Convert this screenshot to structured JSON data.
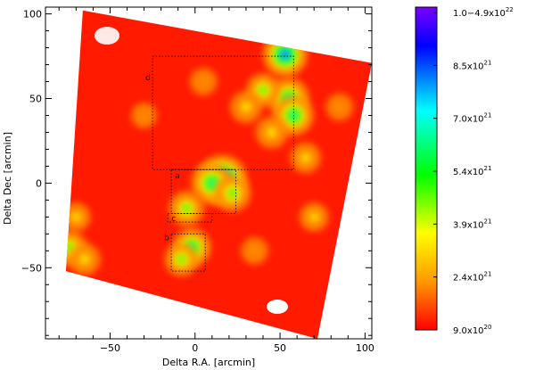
{
  "chart_data": {
    "type": "heatmap",
    "xlabel": "Delta R.A. [arcmin]",
    "ylabel": "Delta Dec [arcmin]",
    "xlim": [
      -88,
      104
    ],
    "ylim": [
      -92,
      104
    ],
    "x_ticks": [
      -50,
      0,
      50,
      100
    ],
    "y_ticks": [
      -50,
      0,
      50,
      100
    ],
    "x_tick_labels": [
      "−50",
      "0",
      "50",
      "100"
    ],
    "y_tick_labels": [
      "−50",
      "0",
      "50",
      "100"
    ],
    "map_corners": [
      [
        -66,
        102
      ],
      [
        104,
        71
      ],
      [
        72,
        -92
      ],
      [
        -76,
        -52
      ]
    ],
    "boxes": [
      {
        "label": "d",
        "x": [
          -25,
          58
        ],
        "y": [
          8,
          75
        ]
      },
      {
        "label": "a",
        "x": [
          -14,
          24
        ],
        "y": [
          -18,
          8
        ]
      },
      {
        "label": "c",
        "x": [
          -16,
          10
        ],
        "y": [
          -23,
          -18
        ]
      },
      {
        "label": "b",
        "x": [
          -14,
          6
        ],
        "y": [
          -52,
          -30
        ]
      }
    ],
    "colorbar": {
      "label_mantissa": [
        "1.0−4.9",
        "8.5",
        "7.0",
        "5.4",
        "3.9",
        "2.4",
        "9.0"
      ],
      "label_base": "x10",
      "label_exponent": [
        "22",
        "21",
        "21",
        "21",
        "21",
        "21",
        "20"
      ],
      "colors": [
        "#7a00ff",
        "#0000ff",
        "#00ffff",
        "#00ff00",
        "#ffff00",
        "#ff9900",
        "#ff0000"
      ]
    },
    "features": [
      {
        "x": 16,
        "y": 2,
        "level": 1.0
      },
      {
        "x": 10,
        "y": 0,
        "level": 0.75
      },
      {
        "x": 22,
        "y": -6,
        "level": 0.6
      },
      {
        "x": 53,
        "y": 76,
        "level": 0.85
      },
      {
        "x": 55,
        "y": 50,
        "level": 0.75
      },
      {
        "x": 58,
        "y": 40,
        "level": 0.7
      },
      {
        "x": 40,
        "y": 55,
        "level": 0.5
      },
      {
        "x": 30,
        "y": 45,
        "level": 0.45
      },
      {
        "x": 45,
        "y": 30,
        "level": 0.45
      },
      {
        "x": -5,
        "y": -15,
        "level": 0.55
      },
      {
        "x": -2,
        "y": -38,
        "level": 0.65
      },
      {
        "x": -8,
        "y": -45,
        "level": 0.5
      },
      {
        "x": -74,
        "y": -38,
        "level": 0.55
      },
      {
        "x": -65,
        "y": -45,
        "level": 0.45
      },
      {
        "x": -70,
        "y": -20,
        "level": 0.35
      },
      {
        "x": 65,
        "y": 15,
        "level": 0.4
      },
      {
        "x": 70,
        "y": -20,
        "level": 0.35
      },
      {
        "x": 35,
        "y": -40,
        "level": 0.3
      },
      {
        "x": 5,
        "y": 60,
        "level": 0.3
      },
      {
        "x": -30,
        "y": 40,
        "level": 0.25
      },
      {
        "x": 85,
        "y": 45,
        "level": 0.3
      }
    ]
  }
}
